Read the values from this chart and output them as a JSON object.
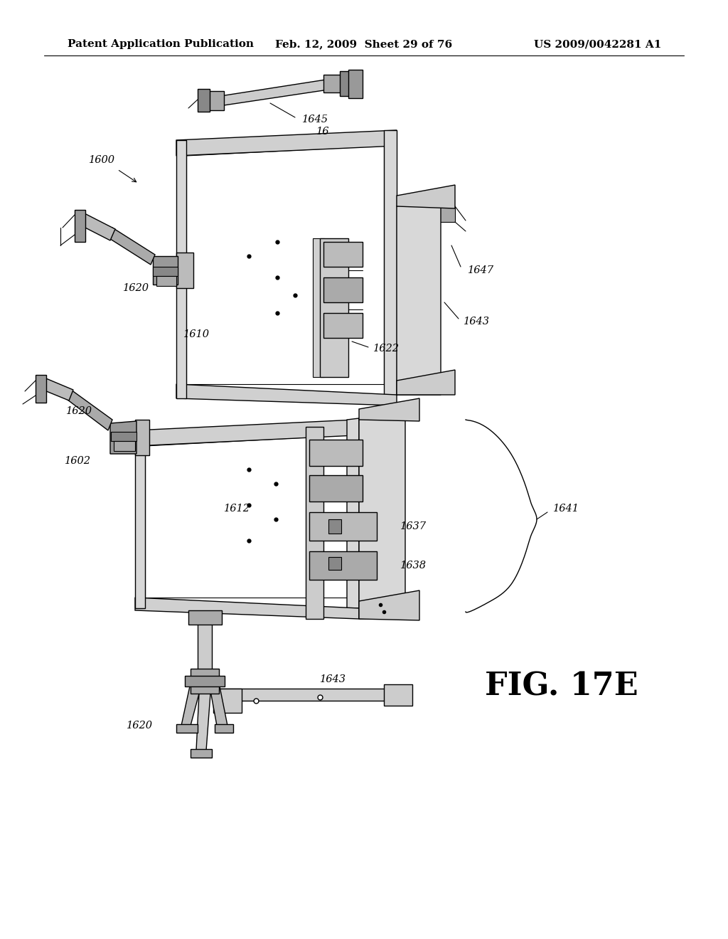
{
  "background_color": "#ffffff",
  "header_left": "Patent Application Publication",
  "header_mid": "Feb. 12, 2009  Sheet 29 of 76",
  "header_right": "US 2009/0042281 A1",
  "figure_label": "FIG. 17E",
  "header_fontsize": 11,
  "label_fontsize": 10.5,
  "fig_label_fontsize": 32,
  "line_color": "#000000",
  "fill_light": "#e8e8e8",
  "fill_med": "#cccccc",
  "fill_dark": "#aaaaaa"
}
